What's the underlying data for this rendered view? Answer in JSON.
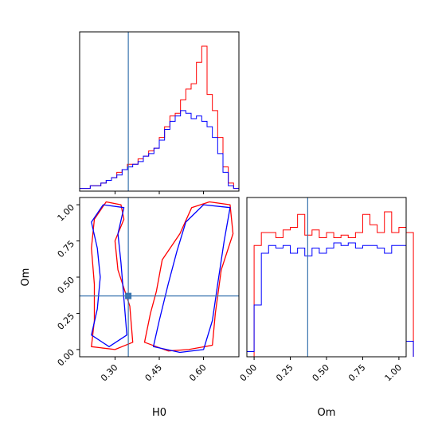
{
  "chart_data": [
    {
      "type": "histogram",
      "panel": "H0 marginal",
      "x_range": [
        0.18,
        0.72
      ],
      "truth": 0.345,
      "series": [
        {
          "color": "#ff0000",
          "bin_edges_start": 0.18,
          "bin_width": 0.018,
          "counts": [
            1,
            1,
            2,
            2,
            3,
            4,
            5,
            7,
            8,
            10,
            10,
            12,
            13,
            15,
            16,
            20,
            24,
            28,
            29,
            34,
            38,
            40,
            48,
            54,
            36,
            30,
            20,
            9,
            3,
            1
          ]
        },
        {
          "color": "#0000ff",
          "bin_edges_start": 0.18,
          "bin_width": 0.018,
          "counts": [
            1,
            1,
            2,
            2,
            3,
            4,
            5,
            6,
            8,
            9,
            10,
            11,
            13,
            14,
            16,
            19,
            23,
            26,
            28,
            30,
            29,
            27,
            28,
            26,
            24,
            20,
            14,
            7,
            2,
            1
          ]
        }
      ]
    },
    {
      "type": "histogram",
      "panel": "Om marginal",
      "x_range": [
        -0.05,
        1.05
      ],
      "truth": 0.37,
      "xlabel": "Om",
      "xticks": [
        "0.00",
        "0.25",
        "0.50",
        "0.75",
        "1.00"
      ],
      "series": [
        {
          "color": "#ff0000",
          "bin_edges_start": -0.05,
          "bin_width": 0.05,
          "counts": [
            0,
            43,
            48,
            48,
            46,
            49,
            50,
            55,
            47,
            49,
            46,
            48,
            46,
            47,
            46,
            48,
            55,
            51,
            48,
            56,
            48,
            50,
            48
          ]
        },
        {
          "color": "#0000ff",
          "bin_edges_start": -0.05,
          "bin_width": 0.05,
          "counts": [
            2,
            20,
            40,
            43,
            42,
            43,
            40,
            42,
            39,
            42,
            40,
            42,
            44,
            43,
            44,
            42,
            43,
            43,
            42,
            40,
            43,
            43,
            6
          ]
        }
      ]
    },
    {
      "type": "contour",
      "panel": "H0 vs Om joint",
      "xlabel": "H0",
      "ylabel": "Om",
      "x_range": [
        0.18,
        0.72
      ],
      "y_range": [
        -0.05,
        1.05
      ],
      "xticks": [
        "0.30",
        "0.45",
        "0.60"
      ],
      "yticks": [
        "0.00",
        "0.25",
        "0.50",
        "0.75",
        "1.00"
      ],
      "truth": [
        0.345,
        0.37
      ],
      "series": [
        {
          "color": "#ff0000",
          "name": "",
          "contours": [
            [
              [
                0.22,
                0.02
              ],
              [
                0.23,
                0.2
              ],
              [
                0.23,
                0.45
              ],
              [
                0.22,
                0.7
              ],
              [
                0.23,
                0.9
              ],
              [
                0.27,
                1.02
              ],
              [
                0.32,
                1.0
              ],
              [
                0.33,
                0.9
              ],
              [
                0.3,
                0.75
              ],
              [
                0.31,
                0.55
              ],
              [
                0.35,
                0.3
              ],
              [
                0.36,
                0.05
              ],
              [
                0.3,
                0.0
              ],
              [
                0.22,
                0.02
              ]
            ],
            [
              [
                0.4,
                0.05
              ],
              [
                0.42,
                0.25
              ],
              [
                0.44,
                0.4
              ],
              [
                0.46,
                0.62
              ],
              [
                0.52,
                0.8
              ],
              [
                0.56,
                0.98
              ],
              [
                0.62,
                1.02
              ],
              [
                0.69,
                1.0
              ],
              [
                0.7,
                0.8
              ],
              [
                0.66,
                0.55
              ],
              [
                0.64,
                0.25
              ],
              [
                0.63,
                0.03
              ],
              [
                0.55,
                0.0
              ],
              [
                0.48,
                -0.01
              ],
              [
                0.4,
                0.05
              ]
            ]
          ]
        },
        {
          "color": "#0000ff",
          "name": "",
          "contours": [
            [
              [
                0.22,
                0.1
              ],
              [
                0.24,
                0.28
              ],
              [
                0.25,
                0.5
              ],
              [
                0.24,
                0.7
              ],
              [
                0.22,
                0.88
              ],
              [
                0.26,
                1.0
              ],
              [
                0.33,
                0.98
              ],
              [
                0.31,
                0.8
              ],
              [
                0.32,
                0.6
              ],
              [
                0.33,
                0.35
              ],
              [
                0.34,
                0.1
              ],
              [
                0.28,
                0.02
              ],
              [
                0.22,
                0.1
              ]
            ],
            [
              [
                0.43,
                0.02
              ],
              [
                0.45,
                0.2
              ],
              [
                0.48,
                0.45
              ],
              [
                0.51,
                0.68
              ],
              [
                0.54,
                0.88
              ],
              [
                0.6,
                1.0
              ],
              [
                0.69,
                0.98
              ],
              [
                0.67,
                0.75
              ],
              [
                0.65,
                0.48
              ],
              [
                0.63,
                0.2
              ],
              [
                0.6,
                0.0
              ],
              [
                0.52,
                -0.02
              ],
              [
                0.43,
                0.02
              ]
            ]
          ]
        }
      ]
    }
  ]
}
